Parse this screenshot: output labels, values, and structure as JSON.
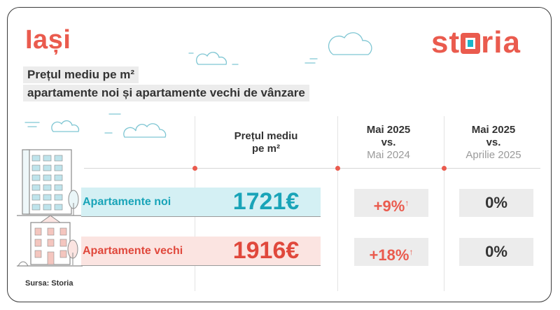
{
  "city": "Iași",
  "brand": "storia",
  "title_line1": "Prețul mediu pe m²",
  "title_line2": "apartamente noi și apartamente vechi de vânzare",
  "columns": {
    "price": {
      "line1": "Prețul mediu",
      "line2": "pe m²"
    },
    "yoy": {
      "line1": "Mai 2025",
      "line2": "vs.",
      "line3": "Mai 2024"
    },
    "mom": {
      "line1": "Mai 2025",
      "line2": "vs.",
      "line3": "Aprilie 2025"
    }
  },
  "rows": [
    {
      "label": "Apartamente noi",
      "price": "1721€",
      "yoy": "+9%",
      "mom": "0%"
    },
    {
      "label": "Apartamente vechi",
      "price": "1916€",
      "yoy": "+18%",
      "mom": "0%"
    }
  ],
  "source": "Sursa: Storia",
  "colors": {
    "accent": "#ea5b4e",
    "teal": "#19a4b8",
    "teal_light": "#d4f0f4",
    "red_light": "#fbe4e1",
    "gray_box": "#ececec"
  }
}
